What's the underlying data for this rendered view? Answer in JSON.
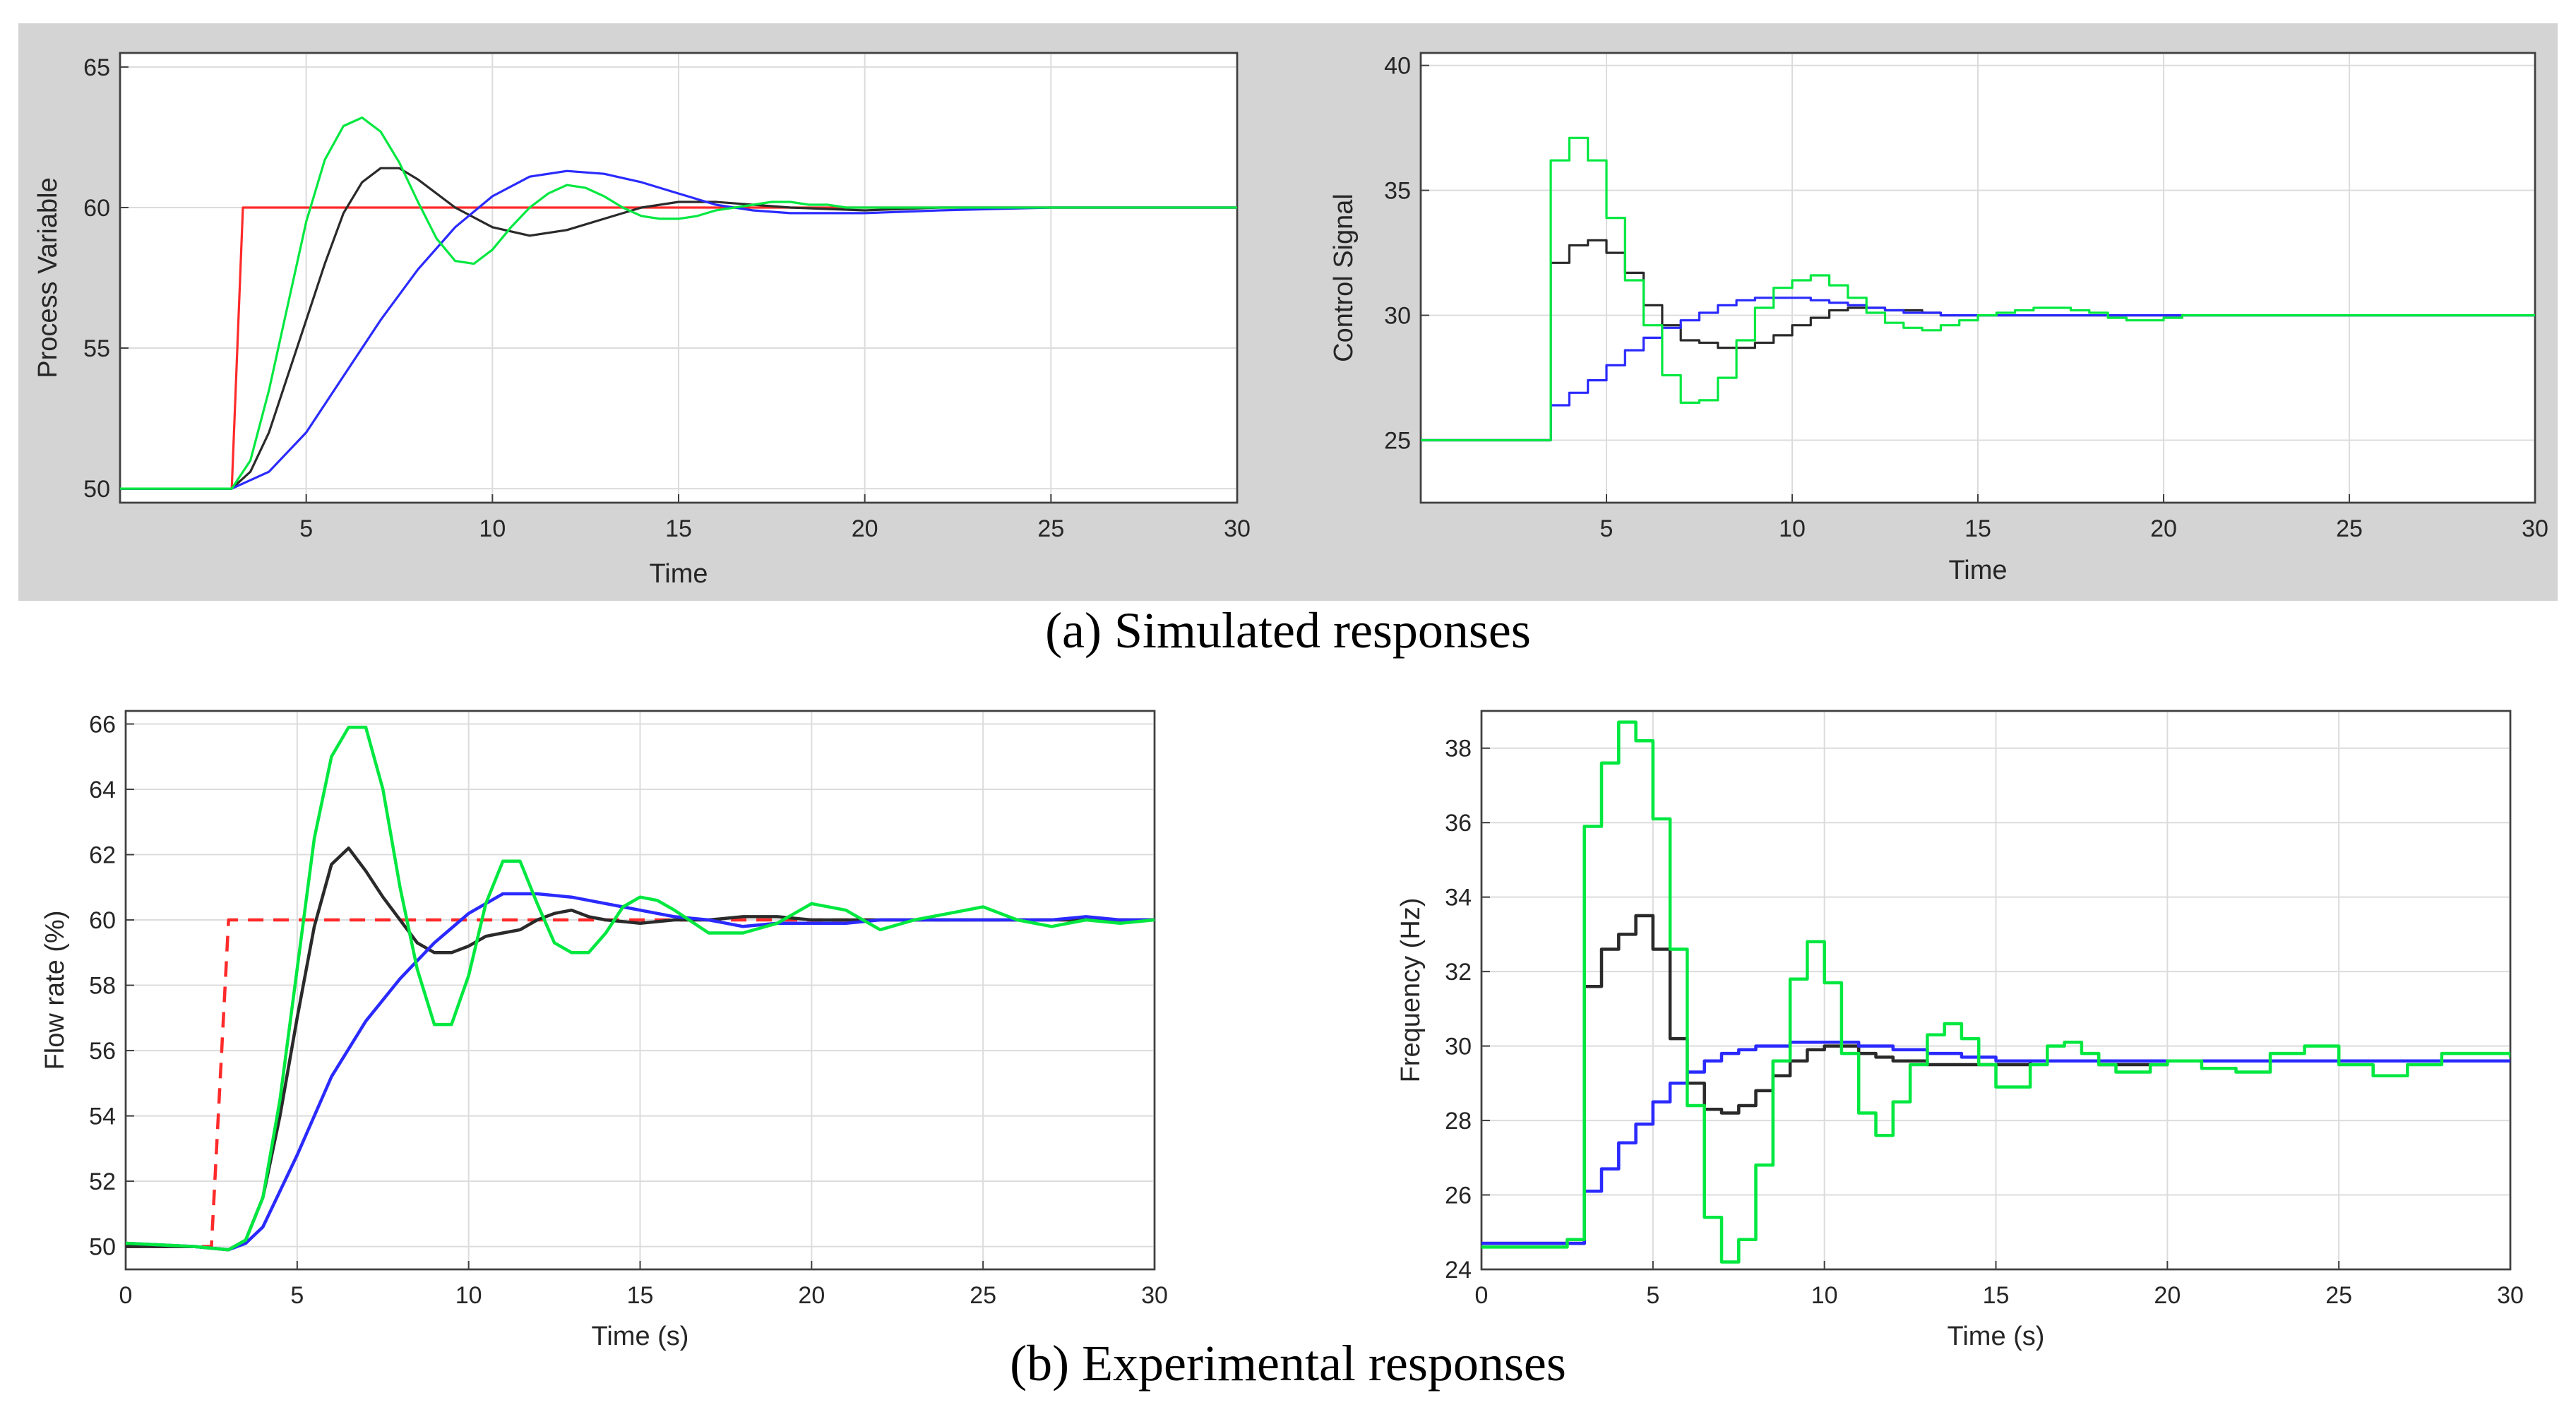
{
  "captions": {
    "a": "(a) Simulated responses",
    "b": "(b) Experimental responses"
  },
  "colors": {
    "reference": "#ff2a2a",
    "black": "#2a2a2a",
    "blue": "#2a2aff",
    "green": "#00e840",
    "grid": "#dcdcdc",
    "panel": "#d4d4d4"
  },
  "chart_data": [
    {
      "id": "sim-pv",
      "type": "line",
      "title": "",
      "xlabel": "Time",
      "ylabel": "Process Variable",
      "xlim": [
        0,
        30
      ],
      "ylim": [
        49.5,
        65.5
      ],
      "xticks": [
        5,
        10,
        15,
        20,
        25,
        30
      ],
      "yticks": [
        50,
        55,
        60,
        65
      ],
      "grid": true,
      "legend": "none",
      "series": [
        {
          "name": "setpoint",
          "color": "#ff2a2a",
          "dashed": false,
          "step": false,
          "x": [
            0,
            3.0,
            3.3,
            30
          ],
          "y": [
            50,
            50,
            60,
            60
          ]
        },
        {
          "name": "black",
          "color": "#2a2a2a",
          "dashed": false,
          "step": false,
          "x": [
            0,
            3,
            3.5,
            4,
            4.5,
            5,
            5.5,
            6,
            6.5,
            7,
            7.5,
            8,
            9,
            10,
            11,
            12,
            13,
            14,
            15,
            16,
            18,
            20,
            22,
            25,
            30
          ],
          "y": [
            50,
            50,
            50.6,
            52,
            54,
            56,
            58,
            59.8,
            60.9,
            61.4,
            61.4,
            61,
            60,
            59.3,
            59,
            59.2,
            59.6,
            60,
            60.2,
            60.2,
            60,
            59.9,
            60,
            60,
            60
          ]
        },
        {
          "name": "blue",
          "color": "#2a2aff",
          "dashed": false,
          "step": false,
          "x": [
            0,
            3,
            4,
            5,
            6,
            7,
            8,
            9,
            10,
            11,
            12,
            13,
            14,
            15,
            16,
            17,
            18,
            19,
            20,
            22,
            25,
            30
          ],
          "y": [
            50,
            50,
            50.6,
            52,
            54,
            56,
            57.8,
            59.3,
            60.4,
            61.1,
            61.3,
            61.2,
            60.9,
            60.5,
            60.1,
            59.9,
            59.8,
            59.8,
            59.8,
            59.9,
            60,
            60
          ]
        },
        {
          "name": "green",
          "color": "#00e840",
          "dashed": false,
          "step": false,
          "x": [
            0,
            3,
            3.5,
            4,
            4.5,
            5,
            5.5,
            6,
            6.5,
            7,
            7.5,
            8,
            8.5,
            9,
            9.5,
            10,
            10.5,
            11,
            11.5,
            12,
            12.5,
            13,
            13.5,
            14,
            14.5,
            15,
            15.5,
            16,
            16.5,
            17,
            17.5,
            18,
            18.5,
            19,
            19.5,
            20,
            21,
            22,
            23,
            25,
            30
          ],
          "y": [
            50,
            50,
            51,
            53.5,
            56.5,
            59.5,
            61.7,
            62.9,
            63.2,
            62.7,
            61.6,
            60.2,
            58.9,
            58.1,
            58,
            58.5,
            59.3,
            60,
            60.5,
            60.8,
            60.7,
            60.4,
            60,
            59.7,
            59.6,
            59.6,
            59.7,
            59.9,
            60,
            60.1,
            60.2,
            60.2,
            60.1,
            60.1,
            60,
            60,
            60,
            60,
            60,
            60,
            60
          ]
        }
      ]
    },
    {
      "id": "sim-cs",
      "type": "line",
      "title": "",
      "xlabel": "Time",
      "ylabel": "Control Signal",
      "xlim": [
        0,
        30
      ],
      "ylim": [
        22.5,
        40.5
      ],
      "xticks": [
        5,
        10,
        15,
        20,
        25,
        30
      ],
      "yticks": [
        25,
        30,
        35,
        40
      ],
      "grid": true,
      "legend": "none",
      "series": [
        {
          "name": "black",
          "color": "#2a2a2a",
          "dashed": false,
          "step": true,
          "x": [
            0,
            3.5,
            4,
            4.5,
            5,
            5.5,
            6,
            6.5,
            7,
            7.5,
            8,
            8.5,
            9,
            9.5,
            10,
            10.5,
            11,
            11.5,
            12,
            12.5,
            13,
            13.5,
            14,
            15,
            16,
            18,
            20,
            22,
            25
          ],
          "y": [
            25,
            32.1,
            32.8,
            33,
            32.5,
            31.7,
            30.4,
            29.6,
            29,
            28.9,
            28.7,
            28.7,
            28.9,
            29.2,
            29.6,
            29.9,
            30.2,
            30.3,
            30.3,
            30.2,
            30.2,
            30.1,
            30,
            30,
            30,
            30,
            30,
            30,
            30
          ]
        },
        {
          "name": "blue",
          "color": "#2a2aff",
          "dashed": false,
          "step": true,
          "x": [
            0,
            3.5,
            4,
            4.5,
            5,
            5.5,
            6,
            6.5,
            7,
            7.5,
            8,
            8.5,
            9,
            9.5,
            10,
            10.5,
            11,
            11.5,
            12,
            12.5,
            13,
            13.5,
            14,
            15,
            16,
            18,
            20,
            22,
            25
          ],
          "y": [
            25,
            26.4,
            26.9,
            27.4,
            28,
            28.6,
            29.1,
            29.5,
            29.8,
            30.1,
            30.4,
            30.6,
            30.7,
            30.7,
            30.7,
            30.6,
            30.5,
            30.4,
            30.3,
            30.2,
            30.1,
            30.1,
            30,
            30,
            30,
            30,
            30,
            30,
            30
          ]
        },
        {
          "name": "green",
          "color": "#00e840",
          "dashed": false,
          "step": true,
          "x": [
            0,
            3.5,
            4,
            4.5,
            5,
            5.5,
            6,
            6.5,
            7,
            7.5,
            8,
            8.5,
            9,
            9.5,
            10,
            10.5,
            11,
            11.5,
            12,
            12.5,
            13,
            13.5,
            14,
            14.5,
            15,
            15.5,
            16,
            16.5,
            17,
            17.5,
            18,
            18.5,
            19,
            19.5,
            20,
            20.5,
            21,
            22,
            25
          ],
          "y": [
            25,
            36.2,
            37.1,
            36.2,
            33.9,
            31.4,
            29.6,
            27.6,
            26.5,
            26.6,
            27.5,
            29,
            30.3,
            31.1,
            31.4,
            31.6,
            31.2,
            30.7,
            30.1,
            29.7,
            29.5,
            29.4,
            29.6,
            29.8,
            30,
            30.1,
            30.2,
            30.3,
            30.3,
            30.2,
            30.1,
            29.9,
            29.8,
            29.8,
            29.9,
            30,
            30,
            30,
            30
          ]
        }
      ]
    },
    {
      "id": "exp-flow",
      "type": "line",
      "title": "",
      "xlabel": "Time (s)",
      "ylabel": "Flow rate (%)",
      "xlim": [
        0,
        30
      ],
      "ylim": [
        49.3,
        66.4
      ],
      "xticks": [
        0,
        5,
        10,
        15,
        20,
        25,
        30
      ],
      "yticks": [
        50,
        52,
        54,
        56,
        58,
        60,
        62,
        64,
        66
      ],
      "grid": true,
      "legend": "none",
      "series": [
        {
          "name": "setpoint",
          "color": "#ff2a2a",
          "dashed": true,
          "step": false,
          "x": [
            0,
            2.5,
            3.0,
            30
          ],
          "y": [
            50,
            50,
            60,
            60
          ]
        },
        {
          "name": "black",
          "color": "#2a2a2a",
          "dashed": false,
          "step": false,
          "x": [
            0,
            2,
            3,
            3.5,
            4,
            4.5,
            5,
            5.5,
            6,
            6.5,
            7,
            7.5,
            8,
            8.5,
            9,
            9.5,
            10,
            10.5,
            11,
            11.5,
            12,
            12.5,
            13,
            13.5,
            14,
            15,
            16,
            17,
            18,
            19,
            20,
            21,
            22,
            23,
            24,
            25,
            26,
            27,
            28,
            29,
            30
          ],
          "y": [
            50,
            50,
            49.9,
            50.2,
            51.5,
            54,
            57,
            59.8,
            61.7,
            62.2,
            61.5,
            60.7,
            60,
            59.3,
            59,
            59,
            59.2,
            59.5,
            59.6,
            59.7,
            60,
            60.2,
            60.3,
            60.1,
            60,
            59.9,
            60,
            60,
            60.1,
            60.1,
            60,
            60,
            60,
            60,
            60,
            60,
            60,
            60,
            60,
            60,
            60
          ]
        },
        {
          "name": "blue",
          "color": "#2a2aff",
          "dashed": false,
          "step": false,
          "x": [
            0,
            2,
            3,
            3.5,
            4,
            5,
            6,
            7,
            8,
            9,
            10,
            11,
            12,
            13,
            14,
            15,
            16,
            17,
            18,
            19,
            20,
            21,
            22,
            23,
            24,
            25,
            26,
            27,
            28,
            29,
            30
          ],
          "y": [
            50.1,
            50,
            49.9,
            50.1,
            50.6,
            52.8,
            55.2,
            56.9,
            58.2,
            59.3,
            60.2,
            60.8,
            60.8,
            60.7,
            60.5,
            60.3,
            60.1,
            60,
            59.8,
            59.9,
            59.9,
            59.9,
            60,
            60,
            60,
            60,
            60,
            60,
            60.1,
            60,
            60
          ]
        },
        {
          "name": "green",
          "color": "#00e840",
          "dashed": false,
          "step": false,
          "x": [
            0,
            2,
            3,
            3.5,
            4,
            4.5,
            5,
            5.5,
            6,
            6.5,
            7,
            7.5,
            8,
            8.5,
            9,
            9.5,
            10,
            10.5,
            11,
            11.5,
            12,
            12.5,
            13,
            13.5,
            14,
            14.5,
            15,
            15.5,
            16,
            17,
            18,
            19,
            20,
            21,
            22,
            23,
            24,
            25,
            26,
            27,
            28,
            29,
            30
          ],
          "y": [
            50.1,
            50,
            49.9,
            50.2,
            51.5,
            54.5,
            58.5,
            62.5,
            65,
            65.9,
            65.9,
            64,
            61,
            58.5,
            56.8,
            56.8,
            58.3,
            60.5,
            61.8,
            61.8,
            60.5,
            59.3,
            59,
            59,
            59.6,
            60.4,
            60.7,
            60.6,
            60.3,
            59.6,
            59.6,
            59.9,
            60.5,
            60.3,
            59.7,
            60,
            60.2,
            60.4,
            60,
            59.8,
            60,
            59.9,
            60
          ]
        }
      ]
    },
    {
      "id": "exp-freq",
      "type": "line",
      "title": "",
      "xlabel": "Time (s)",
      "ylabel": "Frequency (Hz)",
      "xlim": [
        0,
        30
      ],
      "ylim": [
        24,
        39
      ],
      "xticks": [
        0,
        5,
        10,
        15,
        20,
        25,
        30
      ],
      "yticks": [
        24,
        26,
        28,
        30,
        32,
        34,
        36,
        38
      ],
      "grid": true,
      "legend": "none",
      "series": [
        {
          "name": "black",
          "color": "#2a2a2a",
          "dashed": false,
          "step": true,
          "x": [
            0,
            2,
            2.5,
            3,
            3.5,
            4,
            4.5,
            5,
            5.5,
            6,
            6.5,
            7,
            7.5,
            8,
            8.5,
            9,
            9.5,
            10,
            10.5,
            11,
            11.5,
            12,
            13,
            14,
            15,
            16,
            18,
            20,
            22,
            25,
            28,
            30
          ],
          "y": [
            24.7,
            24.7,
            24.7,
            31.6,
            32.6,
            33,
            33.5,
            32.6,
            30.2,
            29,
            28.3,
            28.2,
            28.4,
            28.8,
            29.2,
            29.6,
            29.9,
            30,
            30,
            29.8,
            29.7,
            29.6,
            29.5,
            29.5,
            29.5,
            29.6,
            29.5,
            29.6,
            29.6,
            29.6,
            29.6,
            29.6
          ]
        },
        {
          "name": "blue",
          "color": "#2a2aff",
          "dashed": false,
          "step": true,
          "x": [
            0,
            2,
            2.5,
            3,
            3.5,
            4,
            4.5,
            5,
            5.5,
            6,
            6.5,
            7,
            7.5,
            8,
            9,
            10,
            11,
            12,
            13,
            14,
            15,
            16,
            18,
            20,
            22,
            25,
            28,
            30
          ],
          "y": [
            24.7,
            24.7,
            24.7,
            26.1,
            26.7,
            27.4,
            27.9,
            28.5,
            29,
            29.3,
            29.6,
            29.8,
            29.9,
            30,
            30.1,
            30.1,
            30,
            29.9,
            29.8,
            29.7,
            29.6,
            29.6,
            29.6,
            29.6,
            29.6,
            29.6,
            29.6,
            29.6
          ]
        },
        {
          "name": "green",
          "color": "#00e840",
          "dashed": false,
          "step": true,
          "x": [
            0,
            2,
            2.5,
            3,
            3.5,
            4,
            4.5,
            5,
            5.5,
            6,
            6.5,
            7,
            7.5,
            8,
            8.5,
            9,
            9.5,
            10,
            10.5,
            11,
            11.5,
            12,
            12.5,
            13,
            13.5,
            14,
            14.5,
            15,
            15.5,
            16,
            16.5,
            17,
            17.5,
            18,
            18.5,
            19,
            19.5,
            20,
            20.5,
            21,
            22,
            23,
            24,
            25,
            26,
            27,
            28,
            29,
            30
          ],
          "y": [
            24.6,
            24.6,
            24.8,
            35.9,
            37.6,
            38.7,
            38.2,
            36.1,
            32.6,
            28.4,
            25.4,
            24.2,
            24.8,
            26.8,
            29.6,
            31.8,
            32.8,
            31.7,
            29.8,
            28.2,
            27.6,
            28.5,
            29.5,
            30.3,
            30.6,
            30.2,
            29.5,
            28.9,
            28.9,
            29.5,
            30,
            30.1,
            29.8,
            29.5,
            29.3,
            29.3,
            29.5,
            29.6,
            29.6,
            29.4,
            29.3,
            29.8,
            30,
            29.5,
            29.2,
            29.5,
            29.8,
            29.8,
            29.7
          ]
        }
      ]
    }
  ]
}
